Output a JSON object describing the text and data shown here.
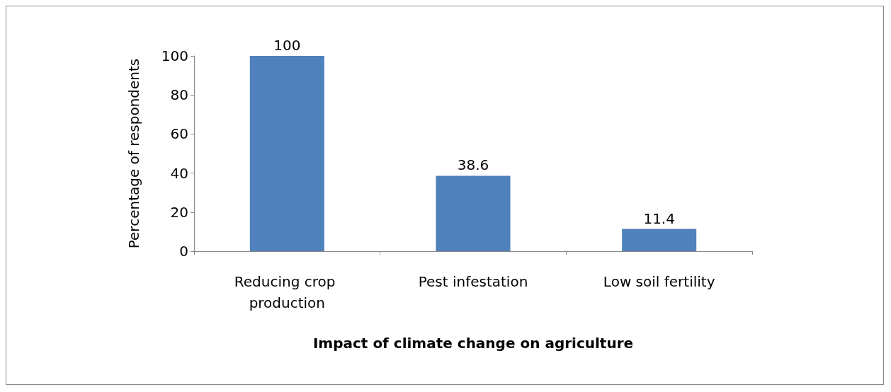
{
  "chart_data": {
    "type": "bar",
    "xlabel": "Impact of climate change on agriculture",
    "ylabel": "Percentage of respondents",
    "categories": [
      "Reducing crop production",
      "Pest infestation",
      "Low soil fertility"
    ],
    "values": [
      100,
      38.6,
      11.4
    ],
    "color": "#4f81bd",
    "ylim": [
      0,
      100
    ],
    "yticks": [
      0,
      20,
      40,
      60,
      80,
      100
    ],
    "grid": false,
    "data_labels": true
  }
}
